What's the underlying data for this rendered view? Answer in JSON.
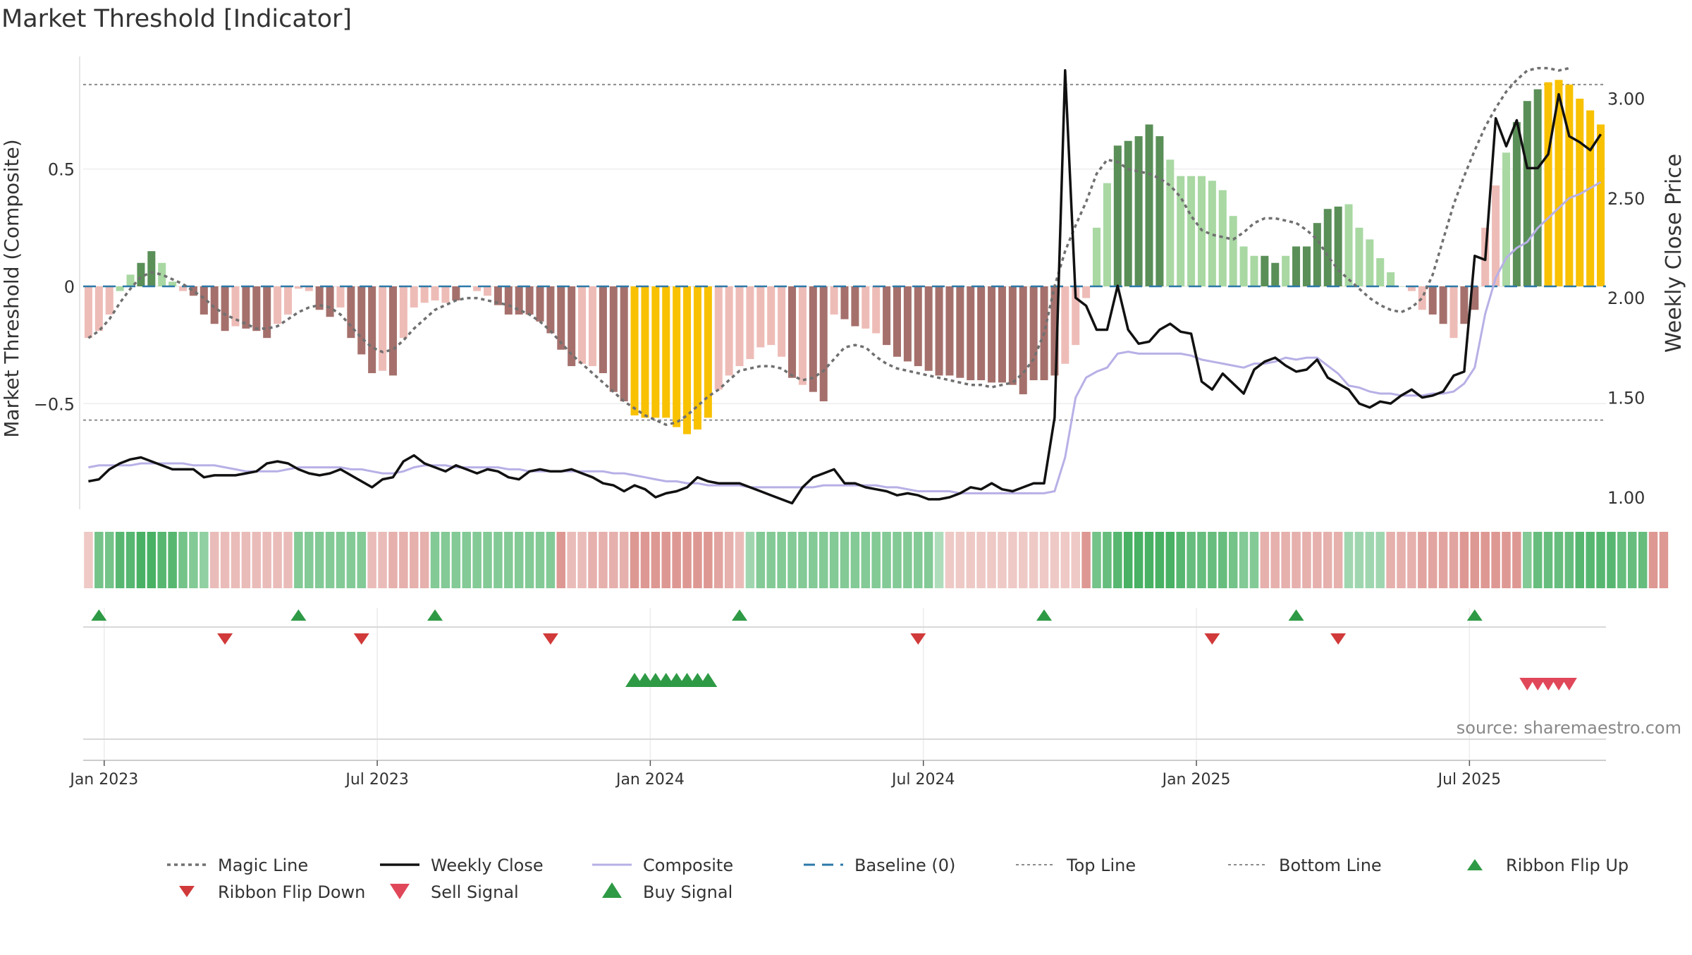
{
  "title": "Market Threshold [Indicator]",
  "source_note": "source: sharemaestro.com",
  "colors": {
    "pos_dark": "#5a8f58",
    "pos_light": "#a9d8a3",
    "neg_dark": "#a5706c",
    "neg_light": "#eebcb7",
    "gold": "#f8c102",
    "magic": "#707070",
    "close": "#111111",
    "composite": "#b7b0e6",
    "baseline": "#2b78a8",
    "threshold": "#8c8c8c",
    "flip_up": "#2e9a45",
    "flip_down": "#d13a3a",
    "buy": "#2e9a45",
    "sell": "#e0485a"
  },
  "chart_data": {
    "type": "bar",
    "y_left": {
      "label": "Market Threshold (Composite)",
      "ylim": [
        -0.95,
        0.98
      ],
      "ticks": [
        {
          "v": 0.5,
          "t": "0.5"
        },
        {
          "v": 0,
          "t": "0"
        },
        {
          "v": -0.5,
          "t": "−0.5"
        }
      ]
    },
    "y_right": {
      "label": "Weekly Close Price",
      "ylim": [
        0.94,
        3.21
      ],
      "ticks": [
        {
          "v": 3.0,
          "t": "3.00"
        },
        {
          "v": 2.5,
          "t": "2.50"
        },
        {
          "v": 2.0,
          "t": "2.00"
        },
        {
          "v": 1.5,
          "t": "1.50"
        },
        {
          "v": 1.0,
          "t": "1.00"
        }
      ]
    },
    "x_ticks": [
      {
        "i": 1.5,
        "t": "Jan 2023"
      },
      {
        "i": 27.5,
        "t": "Jul 2023"
      },
      {
        "i": 53.5,
        "t": "Jan 2024"
      },
      {
        "i": 79.5,
        "t": "Jul 2024"
      },
      {
        "i": 105.5,
        "t": "Jan 2025"
      },
      {
        "i": 131.5,
        "t": "Jul 2025"
      }
    ],
    "top_line": 0.86,
    "bottom_line": -0.57,
    "baseline": 0,
    "bars": [
      -0.22,
      -0.19,
      -0.12,
      -0.02,
      0.05,
      0.1,
      0.15,
      0.1,
      0.02,
      -0.02,
      -0.04,
      -0.12,
      -0.16,
      -0.19,
      -0.17,
      -0.18,
      -0.19,
      -0.22,
      -0.16,
      -0.12,
      -0.01,
      -0.02,
      -0.1,
      -0.13,
      -0.09,
      -0.22,
      -0.29,
      -0.37,
      -0.36,
      -0.38,
      -0.22,
      -0.09,
      -0.07,
      -0.06,
      -0.07,
      -0.06,
      0,
      -0.02,
      -0.04,
      -0.08,
      -0.12,
      -0.12,
      -0.12,
      -0.15,
      -0.2,
      -0.27,
      -0.34,
      -0.33,
      -0.34,
      -0.37,
      -0.45,
      -0.49,
      -0.55,
      -0.56,
      -0.56,
      -0.56,
      -0.6,
      -0.63,
      -0.61,
      -0.56,
      -0.44,
      -0.38,
      -0.34,
      -0.31,
      -0.26,
      -0.25,
      -0.3,
      -0.39,
      -0.42,
      -0.45,
      -0.49,
      -0.12,
      -0.14,
      -0.17,
      -0.18,
      -0.2,
      -0.25,
      -0.3,
      -0.32,
      -0.34,
      -0.36,
      -0.38,
      -0.38,
      -0.39,
      -0.4,
      -0.4,
      -0.41,
      -0.41,
      -0.42,
      -0.46,
      -0.4,
      -0.4,
      -0.38,
      -0.33,
      -0.25,
      -0.05,
      0.25,
      0.44,
      0.6,
      0.62,
      0.64,
      0.69,
      0.64,
      0.54,
      0.47,
      0.47,
      0.47,
      0.45,
      0.41,
      0.3,
      0.17,
      0.13,
      0.13,
      0.1,
      0.13,
      0.17,
      0.17,
      0.27,
      0.33,
      0.34,
      0.35,
      0.25,
      0.2,
      0.12,
      0.06,
      0,
      -0.02,
      -0.1,
      -0.12,
      -0.16,
      -0.22,
      -0.16,
      -0.1,
      0.25,
      0.43,
      0.57,
      0.7,
      0.79,
      0.84,
      0.87,
      0.88,
      0.86,
      0.8,
      0.75,
      0.69
    ],
    "bar_colors": [
      "nl",
      "nl",
      "nl",
      "pl",
      "pl",
      "pd",
      "pd",
      "pl",
      "pl",
      "nl",
      "nd",
      "nd",
      "nd",
      "nd",
      "nl",
      "nd",
      "nd",
      "nd",
      "nl",
      "nl",
      "nl",
      "nl",
      "nd",
      "nd",
      "nl",
      "nd",
      "nd",
      "nd",
      "nl",
      "nd",
      "nl",
      "nl",
      "nl",
      "nl",
      "nl",
      "nd",
      "nl",
      "nl",
      "nl",
      "nd",
      "nd",
      "nd",
      "nd",
      "nd",
      "nd",
      "nd",
      "nd",
      "nl",
      "nl",
      "nd",
      "nd",
      "nd",
      "g",
      "g",
      "g",
      "g",
      "g",
      "g",
      "g",
      "g",
      "nl",
      "nl",
      "nl",
      "nl",
      "nl",
      "nl",
      "nl",
      "nd",
      "nl",
      "nd",
      "nd",
      "nl",
      "nd",
      "nd",
      "nl",
      "nl",
      "nd",
      "nd",
      "nd",
      "nd",
      "nd",
      "nd",
      "nd",
      "nd",
      "nd",
      "nd",
      "nd",
      "nd",
      "nd",
      "nd",
      "nd",
      "nd",
      "nd",
      "nl",
      "nl",
      "nl",
      "pl",
      "pl",
      "pd",
      "pd",
      "pd",
      "pd",
      "pd",
      "pl",
      "pl",
      "pl",
      "pl",
      "pl",
      "pl",
      "pl",
      "pl",
      "pl",
      "pd",
      "pd",
      "pl",
      "pd",
      "pd",
      "pd",
      "pd",
      "pd",
      "pl",
      "pl",
      "pl",
      "pl",
      "pl",
      "pl",
      "nl",
      "nl",
      "nd",
      "nd",
      "nl",
      "nd",
      "nd",
      "nl",
      "nl",
      "pl",
      "pd",
      "pd",
      "pd",
      "g",
      "g",
      "g",
      "g",
      "g",
      "g",
      "pl",
      "pl",
      "pl",
      "pl"
    ],
    "magic_line": [
      -0.22,
      -0.19,
      -0.14,
      -0.07,
      -0.01,
      0.04,
      0.06,
      0.05,
      0.03,
      0.01,
      -0.02,
      -0.05,
      -0.09,
      -0.12,
      -0.14,
      -0.16,
      -0.18,
      -0.18,
      -0.17,
      -0.14,
      -0.11,
      -0.09,
      -0.08,
      -0.09,
      -0.12,
      -0.17,
      -0.22,
      -0.26,
      -0.28,
      -0.27,
      -0.23,
      -0.18,
      -0.14,
      -0.1,
      -0.08,
      -0.06,
      -0.05,
      -0.05,
      -0.06,
      -0.07,
      -0.08,
      -0.1,
      -0.12,
      -0.15,
      -0.19,
      -0.24,
      -0.29,
      -0.33,
      -0.37,
      -0.41,
      -0.45,
      -0.49,
      -0.52,
      -0.55,
      -0.57,
      -0.59,
      -0.58,
      -0.55,
      -0.51,
      -0.47,
      -0.44,
      -0.4,
      -0.36,
      -0.35,
      -0.34,
      -0.34,
      -0.35,
      -0.38,
      -0.4,
      -0.39,
      -0.36,
      -0.31,
      -0.26,
      -0.25,
      -0.26,
      -0.3,
      -0.33,
      -0.35,
      -0.36,
      -0.37,
      -0.38,
      -0.39,
      -0.4,
      -0.41,
      -0.42,
      -0.42,
      -0.43,
      -0.42,
      -0.41,
      -0.37,
      -0.31,
      -0.2,
      0.0,
      0.15,
      0.26,
      0.36,
      0.48,
      0.54,
      0.53,
      0.5,
      0.49,
      0.48,
      0.46,
      0.43,
      0.38,
      0.3,
      0.24,
      0.22,
      0.21,
      0.2,
      0.23,
      0.27,
      0.29,
      0.29,
      0.28,
      0.27,
      0.24,
      0.2,
      0.13,
      0.07,
      0.03,
      -0.01,
      -0.05,
      -0.08,
      -0.1,
      -0.11,
      -0.09,
      -0.05,
      0.05,
      0.2,
      0.35,
      0.47,
      0.58,
      0.68,
      0.76,
      0.83,
      0.88,
      0.92,
      0.93,
      0.93,
      0.92,
      0.93
    ],
    "weekly_close": [
      1.08,
      1.09,
      1.14,
      1.17,
      1.19,
      1.2,
      1.18,
      1.16,
      1.14,
      1.14,
      1.14,
      1.1,
      1.11,
      1.11,
      1.11,
      1.12,
      1.13,
      1.17,
      1.18,
      1.17,
      1.14,
      1.12,
      1.11,
      1.12,
      1.14,
      1.11,
      1.08,
      1.05,
      1.09,
      1.1,
      1.18,
      1.21,
      1.17,
      1.15,
      1.13,
      1.16,
      1.14,
      1.12,
      1.14,
      1.13,
      1.1,
      1.09,
      1.13,
      1.14,
      1.13,
      1.13,
      1.14,
      1.12,
      1.1,
      1.07,
      1.06,
      1.03,
      1.06,
      1.04,
      1.0,
      1.02,
      1.03,
      1.05,
      1.1,
      1.08,
      1.07,
      1.07,
      1.07,
      1.05,
      1.03,
      1.01,
      0.99,
      0.97,
      1.05,
      1.1,
      1.12,
      1.14,
      1.07,
      1.07,
      1.05,
      1.04,
      1.03,
      1.01,
      1.02,
      1.01,
      0.99,
      0.99,
      1.0,
      1.02,
      1.05,
      1.04,
      1.07,
      1.04,
      1.03,
      1.05,
      1.07,
      1.07,
      1.4,
      3.14,
      2.0,
      1.96,
      1.84,
      1.84,
      2.06,
      1.84,
      1.77,
      1.78,
      1.84,
      1.87,
      1.83,
      1.82,
      1.58,
      1.54,
      1.62,
      1.57,
      1.52,
      1.64,
      1.68,
      1.7,
      1.66,
      1.63,
      1.64,
      1.69,
      1.6,
      1.57,
      1.54,
      1.47,
      1.45,
      1.48,
      1.47,
      1.51,
      1.54,
      1.5,
      1.51,
      1.53,
      1.61,
      1.63,
      2.21,
      2.19,
      2.9,
      2.76,
      2.89,
      2.65,
      2.65,
      2.72,
      3.02,
      2.81,
      2.78,
      2.74,
      2.82
    ],
    "composite_price": [
      1.15,
      1.16,
      1.16,
      1.16,
      1.16,
      1.17,
      1.17,
      1.17,
      1.17,
      1.17,
      1.16,
      1.16,
      1.16,
      1.15,
      1.14,
      1.13,
      1.13,
      1.13,
      1.13,
      1.14,
      1.15,
      1.15,
      1.15,
      1.15,
      1.15,
      1.14,
      1.14,
      1.13,
      1.12,
      1.12,
      1.13,
      1.15,
      1.16,
      1.16,
      1.16,
      1.15,
      1.15,
      1.15,
      1.15,
      1.15,
      1.14,
      1.14,
      1.13,
      1.13,
      1.13,
      1.13,
      1.13,
      1.13,
      1.13,
      1.13,
      1.12,
      1.12,
      1.11,
      1.1,
      1.09,
      1.08,
      1.08,
      1.07,
      1.07,
      1.06,
      1.06,
      1.06,
      1.06,
      1.05,
      1.05,
      1.05,
      1.05,
      1.05,
      1.05,
      1.05,
      1.06,
      1.06,
      1.06,
      1.06,
      1.06,
      1.06,
      1.05,
      1.05,
      1.04,
      1.03,
      1.03,
      1.03,
      1.03,
      1.02,
      1.02,
      1.02,
      1.02,
      1.02,
      1.02,
      1.02,
      1.02,
      1.02,
      1.03,
      1.2,
      1.5,
      1.6,
      1.63,
      1.65,
      1.72,
      1.73,
      1.72,
      1.72,
      1.72,
      1.72,
      1.72,
      1.71,
      1.69,
      1.68,
      1.67,
      1.66,
      1.65,
      1.67,
      1.67,
      1.68,
      1.7,
      1.69,
      1.7,
      1.7,
      1.66,
      1.62,
      1.56,
      1.55,
      1.53,
      1.52,
      1.52,
      1.51,
      1.51,
      1.51,
      1.52,
      1.52,
      1.53,
      1.57,
      1.65,
      1.92,
      2.1,
      2.2,
      2.25,
      2.28,
      2.35,
      2.4,
      2.45,
      2.5,
      2.52,
      2.55,
      2.58
    ],
    "ribbon": [
      0.2,
      0.7,
      0.7,
      0.9,
      0.9,
      1.0,
      1.0,
      0.9,
      0.9,
      0.7,
      0.6,
      0.5,
      0.3,
      0.3,
      0.3,
      0.3,
      0.3,
      0.3,
      0.3,
      0.3,
      0.6,
      0.6,
      0.6,
      0.6,
      0.6,
      0.6,
      0.6,
      0.3,
      0.3,
      0.4,
      0.4,
      0.4,
      0.4,
      0.6,
      0.6,
      0.6,
      0.6,
      0.6,
      0.6,
      0.6,
      0.6,
      0.6,
      0.6,
      0.6,
      0.6,
      0.6,
      0.3,
      0.3,
      0.4,
      0.4,
      0.4,
      0.4,
      0.6,
      0.6,
      0.6,
      0.6,
      0.6,
      0.6,
      0.6,
      0.6,
      0.5,
      0.4,
      0.3,
      0.4,
      0.6,
      0.6,
      0.6,
      0.6,
      0.6,
      0.6,
      0.6,
      0.6,
      0.6,
      0.6,
      0.6,
      0.6,
      0.6,
      0.6,
      0.6,
      0.6,
      0.6,
      0.3,
      0.2,
      0.2,
      0.2,
      0.2,
      0.2,
      0.2,
      0.2,
      0.2,
      0.2,
      0.2,
      0.2,
      0.2,
      0.2,
      0.6,
      0.7,
      0.8,
      0.9,
      1.0,
      1.0,
      1.0,
      1.0,
      1.0,
      0.9,
      0.8,
      0.8,
      0.8,
      0.8,
      0.7,
      0.6,
      0.6,
      0.4,
      0.4,
      0.4,
      0.4,
      0.4,
      0.4,
      0.4,
      0.4,
      0.4,
      0.4,
      0.4,
      0.4,
      0.4,
      0.4,
      0.4,
      0.5,
      0.5,
      0.5,
      0.5,
      0.6,
      0.6,
      0.6,
      0.6,
      0.6,
      0.6,
      0.6,
      0.8,
      0.8,
      0.8,
      0.8,
      0.9,
      0.9,
      0.9,
      0.9,
      0.8,
      0.8,
      0.8,
      0.6,
      0.6
    ],
    "ribbon_dir": [
      "dn",
      "up",
      "up",
      "up",
      "up",
      "up",
      "up",
      "up",
      "up",
      "up",
      "up",
      "up",
      "dn",
      "dn",
      "dn",
      "dn",
      "dn",
      "dn",
      "dn",
      "dn",
      "up",
      "up",
      "up",
      "up",
      "up",
      "up",
      "up",
      "dn",
      "dn",
      "dn",
      "dn",
      "dn",
      "dn",
      "up",
      "up",
      "up",
      "up",
      "up",
      "up",
      "up",
      "up",
      "up",
      "up",
      "up",
      "up",
      "dn",
      "dn",
      "dn",
      "dn",
      "dn",
      "dn",
      "dn",
      "dn",
      "dn",
      "dn",
      "dn",
      "dn",
      "dn",
      "dn",
      "dn",
      "dn",
      "dn",
      "dn",
      "up",
      "up",
      "up",
      "up",
      "up",
      "up",
      "up",
      "up",
      "up",
      "up",
      "up",
      "up",
      "up",
      "up",
      "up",
      "up",
      "up",
      "up",
      "up",
      "dn",
      "dn",
      "dn",
      "dn",
      "dn",
      "dn",
      "dn",
      "dn",
      "dn",
      "dn",
      "dn",
      "dn",
      "dn",
      "dn",
      "up",
      "up",
      "up",
      "up",
      "up",
      "up",
      "up",
      "up",
      "up",
      "up",
      "up",
      "up",
      "up",
      "up",
      "up",
      "up",
      "dn",
      "dn",
      "dn",
      "dn",
      "dn",
      "dn",
      "dn",
      "dn",
      "up",
      "up",
      "up",
      "up",
      "dn",
      "dn",
      "dn",
      "dn",
      "dn",
      "dn",
      "dn",
      "dn",
      "dn",
      "dn",
      "dn",
      "dn",
      "dn",
      "up",
      "up",
      "up",
      "up",
      "up",
      "up",
      "up",
      "up",
      "up",
      "up",
      "up",
      "up"
    ],
    "flip_up_idx": [
      1,
      20,
      33,
      62,
      91,
      115,
      132
    ],
    "flip_down_idx": [
      13,
      26,
      44,
      79,
      107,
      119
    ],
    "buy_signal_idx": [
      52,
      53,
      54,
      55,
      56,
      57,
      58,
      59
    ],
    "sell_signal_idx": [
      137,
      138,
      139,
      140,
      141
    ],
    "legend": [
      {
        "key": "magic",
        "label": "Magic Line",
        "glyph": "dotted"
      },
      {
        "key": "close",
        "label": "Weekly Close",
        "glyph": "solid"
      },
      {
        "key": "composite",
        "label": "Composite",
        "glyph": "solid-light"
      },
      {
        "key": "baseline",
        "label": "Baseline (0)",
        "glyph": "dashed"
      },
      {
        "key": "threshold",
        "label": "Top Line",
        "glyph": "fine-dotted"
      },
      {
        "key": "threshold",
        "label": "Bottom Line",
        "glyph": "fine-dotted"
      },
      {
        "key": "flip_up",
        "label": "Ribbon Flip Up",
        "glyph": "tri-up"
      },
      {
        "key": "flip_down",
        "label": "Ribbon Flip Down",
        "glyph": "tri-down"
      },
      {
        "key": "sell",
        "label": "Sell Signal",
        "glyph": "tri-down-big"
      },
      {
        "key": "buy",
        "label": "Buy Signal",
        "glyph": "tri-up-big"
      }
    ]
  }
}
